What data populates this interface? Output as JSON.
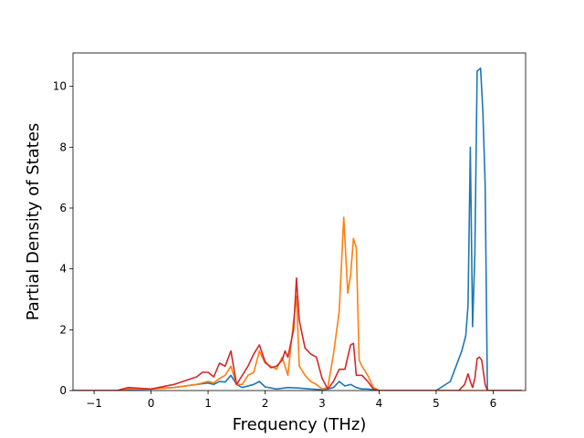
{
  "chart_data": {
    "type": "line",
    "title": "",
    "xlabel": "Frequency (THz)",
    "ylabel": "Partial Density of States",
    "xlim": [
      -1.37,
      6.57
    ],
    "ylim": [
      0,
      11.1
    ],
    "xticks": [
      -1,
      0,
      1,
      2,
      3,
      4,
      5,
      6
    ],
    "yticks": [
      0,
      2,
      4,
      6,
      8,
      10
    ],
    "grid": false,
    "legend": "none",
    "series": [
      {
        "color": "#1f77b4",
        "x": [
          -1.37,
          -0.6,
          -0.4,
          0.0,
          0.4,
          0.8,
          1.0,
          1.1,
          1.2,
          1.3,
          1.4,
          1.5,
          1.6,
          1.8,
          1.9,
          2.0,
          2.2,
          2.4,
          2.6,
          2.8,
          3.0,
          3.1,
          3.2,
          3.3,
          3.4,
          3.5,
          3.6,
          3.7,
          3.8,
          4.0,
          4.5,
          5.0,
          5.25,
          5.35,
          5.45,
          5.52,
          5.56,
          5.6,
          5.64,
          5.68,
          5.72,
          5.78,
          5.82,
          5.86,
          5.9,
          6.0,
          6.5
        ],
        "y": [
          0,
          0,
          0.03,
          0.05,
          0.1,
          0.2,
          0.25,
          0.2,
          0.3,
          0.28,
          0.5,
          0.2,
          0.1,
          0.2,
          0.3,
          0.12,
          0.05,
          0.1,
          0.08,
          0.05,
          0.03,
          0.05,
          0.1,
          0.3,
          0.15,
          0.2,
          0.1,
          0.05,
          0.05,
          0,
          0,
          0,
          0.3,
          0.8,
          1.3,
          1.8,
          2.8,
          8.0,
          2.1,
          4.5,
          10.5,
          10.6,
          9.2,
          6.8,
          0,
          0,
          0
        ]
      },
      {
        "color": "#ff7f0e",
        "x": [
          -1.37,
          -0.6,
          -0.4,
          0.0,
          0.4,
          0.8,
          1.0,
          1.1,
          1.2,
          1.3,
          1.4,
          1.5,
          1.6,
          1.7,
          1.8,
          1.9,
          2.0,
          2.1,
          2.2,
          2.3,
          2.4,
          2.5,
          2.55,
          2.6,
          2.7,
          2.8,
          2.9,
          3.0,
          3.1,
          3.2,
          3.3,
          3.38,
          3.45,
          3.5,
          3.55,
          3.6,
          3.65,
          3.7,
          3.8,
          3.9,
          4.0,
          4.5,
          5.0,
          6.5
        ],
        "y": [
          0,
          0,
          0.05,
          0.05,
          0.1,
          0.2,
          0.3,
          0.25,
          0.4,
          0.5,
          0.8,
          0.2,
          0.2,
          0.5,
          0.6,
          1.3,
          0.9,
          0.8,
          0.7,
          1.1,
          0.5,
          2.3,
          3.1,
          0.8,
          0.5,
          0.3,
          0.2,
          0.05,
          0.1,
          1.2,
          2.6,
          5.7,
          3.2,
          3.8,
          5.0,
          4.7,
          1.0,
          0.8,
          0.5,
          0.1,
          0,
          0,
          0,
          0
        ]
      },
      {
        "color": "#d62728",
        "x": [
          -1.37,
          -0.6,
          -0.4,
          0.0,
          0.4,
          0.8,
          0.9,
          1.0,
          1.1,
          1.2,
          1.3,
          1.4,
          1.5,
          1.6,
          1.7,
          1.8,
          1.9,
          2.0,
          2.1,
          2.2,
          2.3,
          2.35,
          2.4,
          2.5,
          2.55,
          2.6,
          2.7,
          2.8,
          2.9,
          3.0,
          3.1,
          3.2,
          3.3,
          3.4,
          3.5,
          3.55,
          3.6,
          3.7,
          3.8,
          3.9,
          4.0,
          4.5,
          5.0,
          5.4,
          5.5,
          5.56,
          5.6,
          5.64,
          5.68,
          5.72,
          5.76,
          5.8,
          5.86,
          5.9,
          6.0,
          6.5
        ],
        "y": [
          0,
          0,
          0.1,
          0.05,
          0.2,
          0.45,
          0.6,
          0.6,
          0.45,
          0.9,
          0.8,
          1.3,
          0.2,
          0.5,
          0.8,
          1.2,
          1.5,
          0.95,
          0.75,
          0.8,
          1.0,
          1.3,
          1.1,
          2.0,
          3.7,
          2.3,
          1.4,
          1.2,
          1.1,
          0.4,
          0.05,
          0.3,
          0.7,
          0.7,
          1.5,
          1.55,
          0.5,
          0.5,
          0.3,
          0.05,
          0,
          0,
          0,
          0,
          0.2,
          0.55,
          0.3,
          0.1,
          0.4,
          1.05,
          1.1,
          1.0,
          0.2,
          0,
          0,
          0
        ]
      }
    ]
  }
}
